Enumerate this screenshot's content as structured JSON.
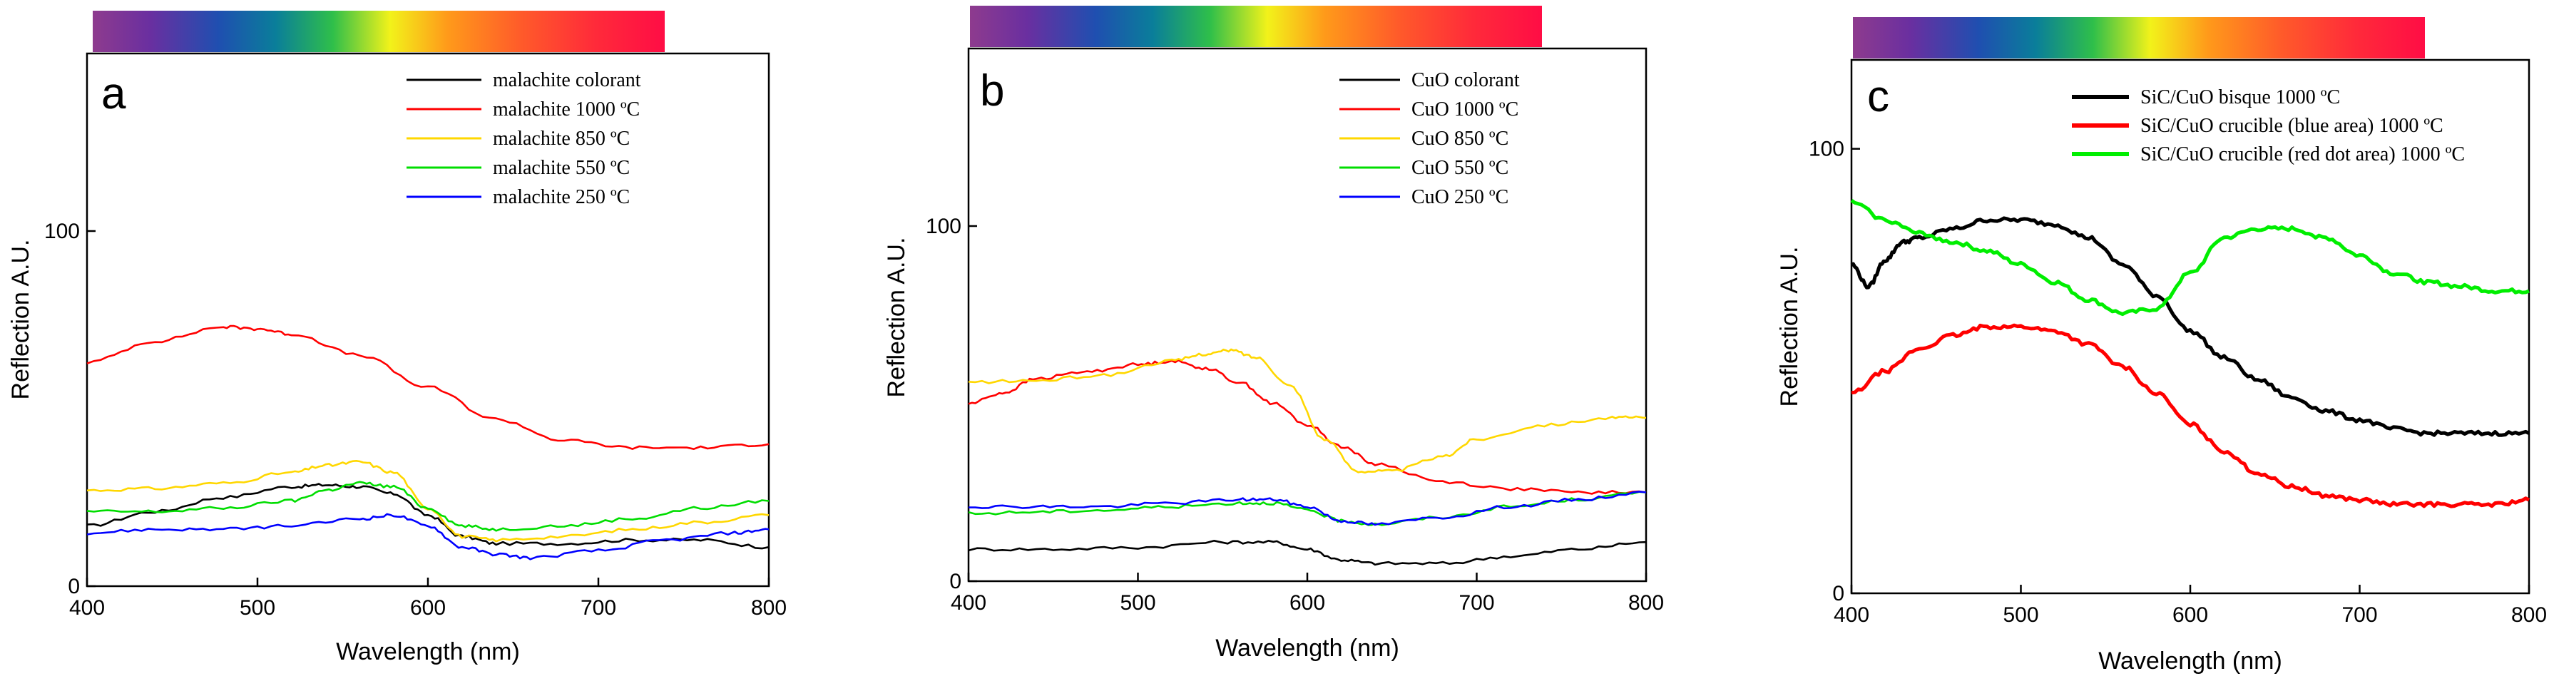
{
  "chart_data": [
    {
      "panel": "a",
      "type": "line",
      "xlabel": "Wavelength (nm)",
      "ylabel": "Reflection A.U.",
      "xlim": [
        400,
        800
      ],
      "ylim": [
        0,
        150
      ],
      "xticks": [
        400,
        500,
        600,
        700,
        800
      ],
      "yticks": [
        0,
        100
      ],
      "legend_position": "top-right",
      "series": [
        {
          "name": "malachite colorant",
          "color": "#000000",
          "x": [
            400,
            440,
            480,
            520,
            540,
            560,
            580,
            600,
            620,
            640,
            680,
            720,
            760,
            800
          ],
          "values": [
            17,
            21,
            25,
            28,
            28.5,
            28,
            26,
            20,
            14,
            12,
            12,
            13,
            13,
            11
          ]
        },
        {
          "name": "malachite 1000 ºC",
          "color": "#ff0000",
          "x": [
            400,
            440,
            480,
            500,
            520,
            560,
            600,
            640,
            680,
            720,
            760,
            800
          ],
          "values": [
            63,
            69,
            73,
            72.5,
            71,
            65,
            56,
            47,
            41,
            39,
            39,
            40
          ]
        },
        {
          "name": "malachite 850 ºC",
          "color": "#ffd700",
          "x": [
            400,
            440,
            480,
            520,
            540,
            560,
            580,
            600,
            620,
            640,
            680,
            720,
            760,
            800
          ],
          "values": [
            27,
            27.5,
            29,
            32,
            34,
            35,
            32,
            22,
            14,
            13,
            14,
            16,
            18,
            20
          ]
        },
        {
          "name": "malachite 550 ºC",
          "color": "#00dd00",
          "x": [
            400,
            440,
            480,
            520,
            540,
            560,
            580,
            600,
            620,
            640,
            680,
            720,
            760,
            800
          ],
          "values": [
            21,
            21,
            22,
            24,
            27,
            29,
            28,
            22,
            17,
            16,
            17,
            19,
            22,
            24
          ]
        },
        {
          "name": "malachite 250 ºC",
          "color": "#0000ff",
          "x": [
            400,
            440,
            480,
            520,
            560,
            580,
            600,
            620,
            640,
            660,
            700,
            740,
            780,
            800
          ],
          "values": [
            15,
            16,
            16,
            17,
            19,
            20,
            17,
            11,
            9,
            8,
            10,
            13,
            15,
            16
          ]
        }
      ]
    },
    {
      "panel": "b",
      "type": "line",
      "xlabel": "Wavelength (nm)",
      "ylabel": "Reflection A.U.",
      "xlim": [
        400,
        800
      ],
      "ylim": [
        0,
        150
      ],
      "xticks": [
        400,
        500,
        600,
        700,
        800
      ],
      "yticks": [
        0,
        100
      ],
      "legend_position": "top-right",
      "series": [
        {
          "name": "CuO colorant",
          "color": "#000000",
          "x": [
            400,
            450,
            500,
            550,
            580,
            600,
            620,
            640,
            680,
            720,
            760,
            800
          ],
          "values": [
            9,
            9,
            9.5,
            11,
            11,
            9,
            6,
            5,
            5,
            7,
            9,
            11
          ]
        },
        {
          "name": "CuO 1000 ºC",
          "color": "#ff0000",
          "x": [
            400,
            420,
            440,
            470,
            500,
            520,
            540,
            560,
            580,
            600,
            620,
            640,
            680,
            720,
            760,
            800
          ],
          "values": [
            50,
            53,
            57,
            59,
            61,
            62,
            60,
            56,
            50,
            44,
            38,
            33,
            28,
            26,
            25,
            25
          ]
        },
        {
          "name": "CuO 850 ºC",
          "color": "#ffd700",
          "x": [
            400,
            440,
            480,
            520,
            540,
            555,
            570,
            590,
            610,
            630,
            650,
            680,
            700,
            740,
            780,
            800
          ],
          "values": [
            56,
            56.5,
            58,
            62,
            64,
            65,
            63,
            55,
            40,
            31,
            31,
            35,
            40,
            44,
            46,
            46
          ]
        },
        {
          "name": "CuO 550 ºC",
          "color": "#00dd00",
          "x": [
            400,
            440,
            480,
            520,
            560,
            580,
            600,
            620,
            640,
            680,
            720,
            760,
            800
          ],
          "values": [
            19,
            19.5,
            20,
            21,
            22,
            22,
            20,
            17,
            16,
            18,
            21,
            23,
            25
          ]
        },
        {
          "name": "CuO 250 ºC",
          "color": "#0000ff",
          "x": [
            400,
            440,
            480,
            520,
            560,
            580,
            600,
            620,
            640,
            680,
            720,
            760,
            800
          ],
          "values": [
            21,
            21,
            21,
            22,
            23,
            23,
            21,
            17,
            16,
            18,
            21,
            23,
            25
          ]
        }
      ]
    },
    {
      "panel": "c",
      "type": "line",
      "xlabel": "Wavelength (nm)",
      "ylabel": "Reflection A.U.",
      "xlim": [
        400,
        800
      ],
      "ylim": [
        0,
        120
      ],
      "xticks": [
        400,
        500,
        600,
        700,
        800
      ],
      "yticks": [
        0,
        100
      ],
      "legend_position": "top-right",
      "series": [
        {
          "name": "SiC/CuO bisque 1000 ºC",
          "color": "#000000",
          "x": [
            400,
            410,
            420,
            430,
            440,
            460,
            480,
            500,
            520,
            540,
            560,
            580,
            600,
            620,
            640,
            660,
            680,
            700,
            720,
            740,
            760,
            780,
            800
          ],
          "values": [
            74,
            69,
            75,
            79,
            80,
            82,
            84,
            84,
            83,
            80,
            74,
            67,
            59,
            53,
            48,
            44,
            41,
            39,
            37,
            36,
            36,
            36,
            36
          ]
        },
        {
          "name": "SiC/CuO crucible (blue area) 1000 ºC",
          "color": "#ff0000",
          "x": [
            400,
            420,
            440,
            460,
            480,
            500,
            520,
            540,
            560,
            580,
            600,
            620,
            640,
            660,
            680,
            700,
            720,
            740,
            760,
            780,
            800
          ],
          "values": [
            45,
            50,
            55,
            58,
            60,
            60,
            59,
            56,
            51,
            45,
            38,
            32,
            27,
            24,
            22,
            21,
            20,
            20,
            20,
            20,
            21
          ]
        },
        {
          "name": "SiC/CuO crucible (red dot area) 1000 ºC",
          "color": "#00ee00",
          "x": [
            400,
            420,
            440,
            460,
            480,
            500,
            520,
            540,
            560,
            580,
            600,
            620,
            640,
            660,
            680,
            700,
            720,
            740,
            760,
            780,
            800
          ],
          "values": [
            88,
            84,
            81,
            79,
            77,
            74,
            70,
            66,
            63,
            64,
            72,
            80,
            82,
            82,
            80,
            76,
            72,
            70,
            69,
            68,
            68
          ]
        }
      ]
    }
  ],
  "panel_labels": [
    "a",
    "b",
    "c"
  ]
}
